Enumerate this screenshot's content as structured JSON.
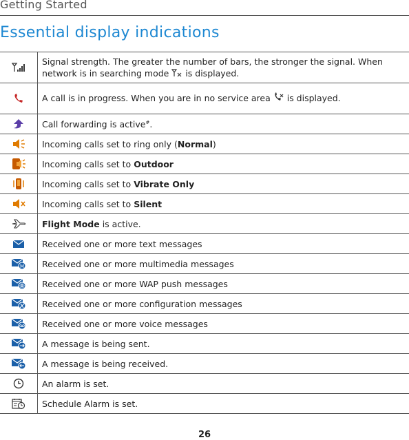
{
  "header": {
    "section": "Getting Started"
  },
  "title": "Essential display indications",
  "rows": [
    {
      "icon": "signal-strength-icon",
      "text": "Signal strength. The greater the number of bars, the stronger the signal. When network is in searching mode",
      "text2": "is displayed."
    },
    {
      "icon": "call-in-progress-icon",
      "text": "A call is in progress. When you are in no service area",
      "text2": "is displayed."
    },
    {
      "icon": "call-forwarding-icon",
      "text": "Call forwarding is active",
      "sup": "#",
      "text2": "."
    },
    {
      "icon": "ring-only-icon",
      "text": "Incoming calls set to ring only (",
      "bold": "Normal",
      "text2": ")"
    },
    {
      "icon": "outdoor-icon",
      "text": "Incoming calls set to ",
      "bold": "Outdoor"
    },
    {
      "icon": "vibrate-only-icon",
      "text": "Incoming calls set to ",
      "bold": "Vibrate Only"
    },
    {
      "icon": "silent-icon",
      "text": "Incoming calls set to ",
      "bold": "Silent"
    },
    {
      "icon": "flight-mode-icon",
      "bold": "Flight Mode",
      "text2": " is active."
    },
    {
      "icon": "text-message-icon",
      "text": "Received one or more text messages"
    },
    {
      "icon": "multimedia-message-icon",
      "text": "Received one or more multimedia messages"
    },
    {
      "icon": "wap-push-message-icon",
      "text": "Received one or more WAP push messages"
    },
    {
      "icon": "configuration-message-icon",
      "text": "Received one or more configuration messages"
    },
    {
      "icon": "voice-message-icon",
      "text": "Received one or more voice messages"
    },
    {
      "icon": "message-sending-icon",
      "text": "A message is being sent."
    },
    {
      "icon": "message-receiving-icon",
      "text": "A message is being received."
    },
    {
      "icon": "alarm-icon",
      "text": "An alarm is set."
    },
    {
      "icon": "schedule-alarm-icon",
      "text": "Schedule Alarm is set."
    }
  ],
  "page_number": "26",
  "colors": {
    "title": "#1e88d2",
    "icon_blue": "#1a5fa8",
    "icon_orange": "#e07b00",
    "icon_red": "#c62828"
  }
}
